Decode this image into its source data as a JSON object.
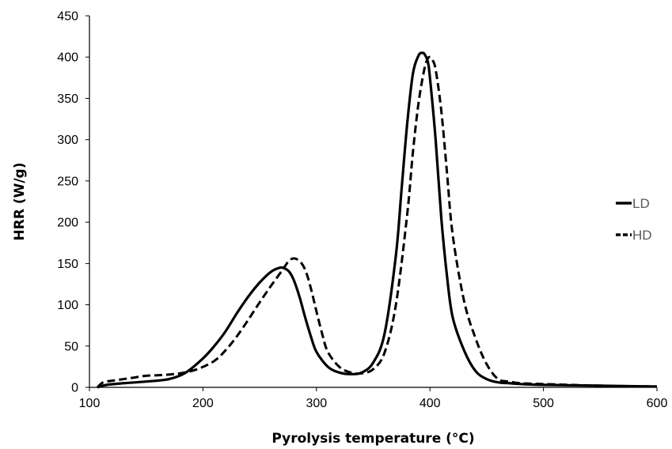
{
  "chart_data": {
    "type": "line",
    "title": "",
    "xlabel": "Pyrolysis temperature (°C)",
    "ylabel": "HRR (W/g)",
    "xlim": [
      100,
      600
    ],
    "ylim": [
      0,
      450
    ],
    "xticks": [
      100,
      200,
      300,
      400,
      500,
      600
    ],
    "yticks": [
      0,
      50,
      100,
      150,
      200,
      250,
      300,
      350,
      400,
      450
    ],
    "grid": false,
    "legend_position": "right",
    "series": [
      {
        "name": "LD",
        "style": "solid",
        "color": "#000000",
        "x": [
          107,
          115,
          130,
          150,
          170,
          185,
          200,
          210,
          220,
          230,
          240,
          250,
          260,
          268,
          272,
          276,
          280,
          285,
          290,
          295,
          300,
          310,
          320,
          330,
          340,
          350,
          360,
          370,
          375,
          380,
          385,
          390,
          393,
          395,
          398,
          400,
          405,
          410,
          415,
          420,
          430,
          440,
          450,
          460,
          470,
          480,
          500,
          550,
          600
        ],
        "y": [
          0,
          3,
          5,
          7,
          10,
          18,
          35,
          50,
          68,
          90,
          110,
          127,
          140,
          145,
          144,
          140,
          130,
          110,
          85,
          62,
          43,
          25,
          18,
          16,
          18,
          30,
          65,
          160,
          240,
          320,
          380,
          402,
          405,
          404,
          395,
          375,
          300,
          205,
          135,
          85,
          45,
          20,
          10,
          6,
          5,
          4,
          3,
          2,
          1
        ]
      },
      {
        "name": "HD",
        "style": "dashed",
        "color": "#000000",
        "x": [
          107,
          112,
          120,
          130,
          140,
          150,
          165,
          180,
          195,
          210,
          220,
          230,
          240,
          250,
          260,
          270,
          275,
          279,
          283,
          288,
          292,
          296,
          300,
          305,
          310,
          320,
          330,
          340,
          350,
          360,
          370,
          380,
          385,
          390,
          395,
          398,
          400,
          402,
          405,
          410,
          415,
          420,
          430,
          440,
          450,
          460,
          470,
          480,
          500,
          550,
          600
        ],
        "y": [
          0,
          6,
          8,
          10,
          12,
          14,
          15,
          17,
          22,
          32,
          45,
          62,
          82,
          103,
          123,
          142,
          152,
          156,
          155,
          148,
          135,
          115,
          92,
          65,
          43,
          25,
          18,
          17,
          22,
          42,
          100,
          210,
          285,
          345,
          385,
          398,
          400,
          397,
          385,
          335,
          260,
          185,
          105,
          60,
          28,
          10,
          7,
          5,
          4,
          2,
          1
        ]
      }
    ]
  }
}
